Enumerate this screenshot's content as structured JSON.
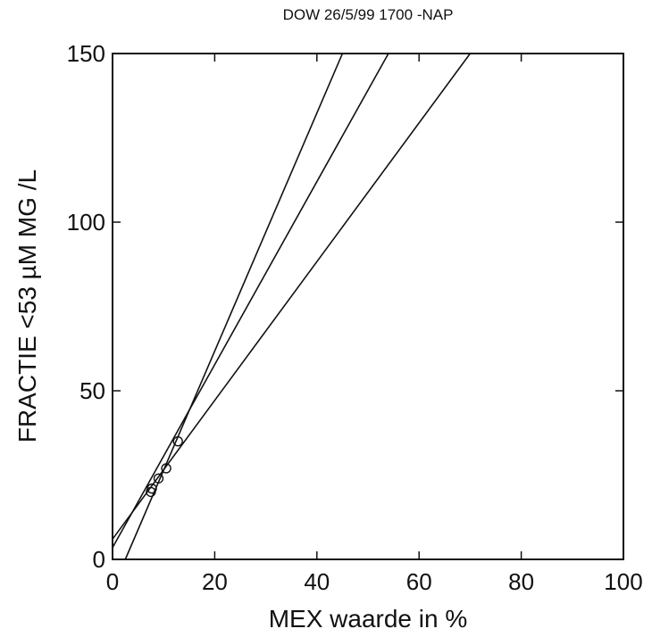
{
  "chart_data": {
    "type": "scatter",
    "title": "DOW 26/5/99 1700 -NAP",
    "xlabel": "MEX waarde in %",
    "ylabel": "FRACTIE <53 µM MG /L",
    "xlim": [
      0,
      100
    ],
    "ylim": [
      0,
      150
    ],
    "xticks": [
      0,
      20,
      40,
      60,
      80,
      100
    ],
    "yticks": [
      0,
      50,
      100,
      150
    ],
    "grid": false,
    "points": [
      {
        "x": 7.5,
        "y": 20
      },
      {
        "x": 7.7,
        "y": 21
      },
      {
        "x": 9.0,
        "y": 24
      },
      {
        "x": 10.5,
        "y": 27
      },
      {
        "x": 12.8,
        "y": 35
      }
    ],
    "lines": [
      {
        "x": [
          2.5,
          45.0
        ],
        "y": [
          0,
          150
        ]
      },
      {
        "x": [
          0.0,
          54.0
        ],
        "y": [
          3.5,
          150
        ]
      },
      {
        "x": [
          0.0,
          70.0
        ],
        "y": [
          6.0,
          150
        ]
      }
    ]
  }
}
